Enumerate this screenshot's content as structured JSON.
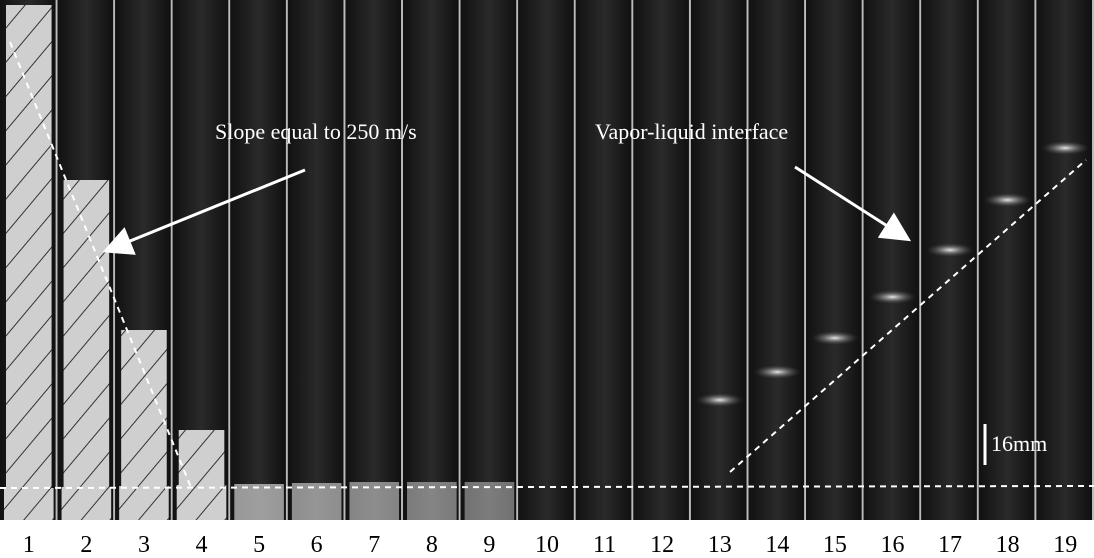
{
  "annotations": {
    "slope": "Slope equal to 250 m/s",
    "interface": "Vapor-liquid interface",
    "scale_bar": "16mm"
  },
  "frame_labels": [
    1,
    2,
    3,
    4,
    5,
    6,
    7,
    8,
    9,
    10,
    11,
    12,
    13,
    14,
    15,
    16,
    17,
    18,
    19
  ]
}
